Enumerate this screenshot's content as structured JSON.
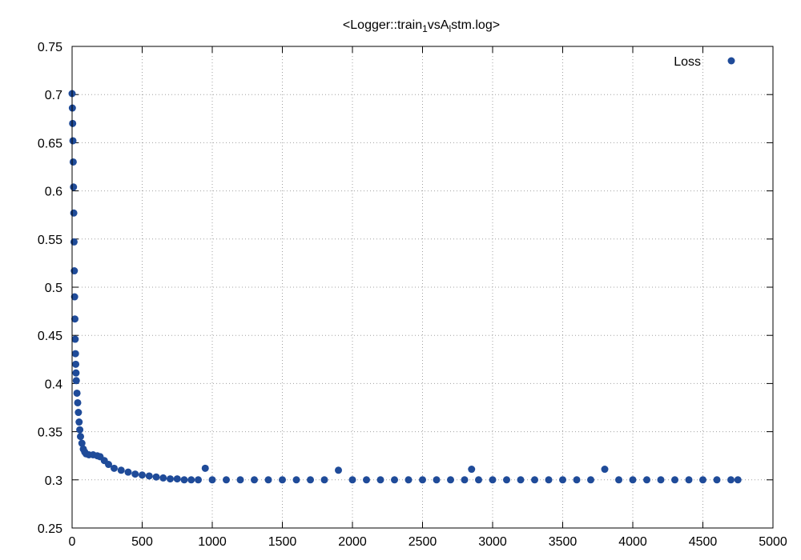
{
  "chart_data": {
    "type": "scatter",
    "title": {
      "prefix": "<Logger::train",
      "sub1": "1",
      "middle": "vsA",
      "sub2": "l",
      "suffix": "stm.log>"
    },
    "xlabel": "",
    "ylabel": "",
    "xlim": [
      0,
      5000
    ],
    "ylim": [
      0.25,
      0.75
    ],
    "x_ticks": [
      0,
      500,
      1000,
      1500,
      2000,
      2500,
      3000,
      3500,
      4000,
      4500,
      5000
    ],
    "y_ticks": [
      0.25,
      0.3,
      0.35,
      0.4,
      0.45,
      0.5,
      0.55,
      0.6,
      0.65,
      0.7,
      0.75
    ],
    "y_tick_labels": [
      "0.25",
      "0.3",
      "0.35",
      "0.4",
      "0.45",
      "0.5",
      "0.55",
      "0.6",
      "0.65",
      "0.7",
      "0.75"
    ],
    "grid": true,
    "legend_position": "top-right",
    "series": [
      {
        "name": "Loss",
        "color": "#1f4b99",
        "marker": "circle",
        "x": [
          0,
          2,
          4,
          6,
          8,
          10,
          12,
          14,
          16,
          18,
          20,
          22,
          24,
          26,
          28,
          30,
          35,
          40,
          45,
          50,
          55,
          60,
          70,
          80,
          90,
          100,
          120,
          150,
          180,
          200,
          230,
          260,
          300,
          350,
          400,
          450,
          500,
          550,
          600,
          650,
          700,
          750,
          800,
          850,
          900,
          950,
          1000,
          1100,
          1200,
          1300,
          1400,
          1500,
          1600,
          1700,
          1800,
          1900,
          2000,
          2100,
          2200,
          2300,
          2400,
          2500,
          2600,
          2700,
          2800,
          2850,
          2900,
          3000,
          3100,
          3200,
          3300,
          3400,
          3500,
          3600,
          3700,
          3800,
          3900,
          4000,
          4100,
          4200,
          4300,
          4400,
          4500,
          4600,
          4700,
          4750
        ],
        "y": [
          0.701,
          0.686,
          0.67,
          0.652,
          0.63,
          0.604,
          0.577,
          0.547,
          0.517,
          0.49,
          0.467,
          0.446,
          0.431,
          0.42,
          0.411,
          0.403,
          0.39,
          0.38,
          0.37,
          0.36,
          0.352,
          0.345,
          0.338,
          0.332,
          0.329,
          0.327,
          0.326,
          0.326,
          0.325,
          0.324,
          0.32,
          0.316,
          0.312,
          0.31,
          0.308,
          0.306,
          0.305,
          0.304,
          0.303,
          0.302,
          0.301,
          0.301,
          0.3,
          0.3,
          0.3,
          0.312,
          0.3,
          0.3,
          0.3,
          0.3,
          0.3,
          0.3,
          0.3,
          0.3,
          0.3,
          0.31,
          0.3,
          0.3,
          0.3,
          0.3,
          0.3,
          0.3,
          0.3,
          0.3,
          0.3,
          0.311,
          0.3,
          0.3,
          0.3,
          0.3,
          0.3,
          0.3,
          0.3,
          0.3,
          0.3,
          0.311,
          0.3,
          0.3,
          0.3,
          0.3,
          0.3,
          0.3,
          0.3,
          0.3,
          0.3,
          0.3
        ]
      }
    ]
  }
}
